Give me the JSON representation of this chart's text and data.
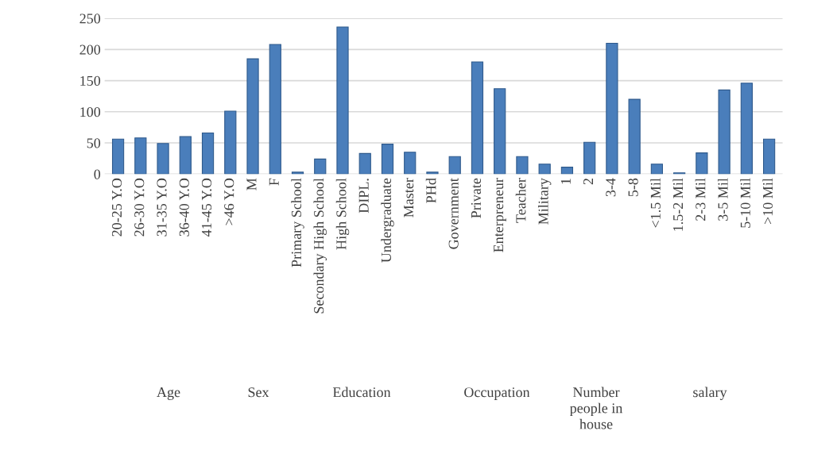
{
  "chart_data": {
    "type": "bar",
    "categories": [
      "20-25 Y.O",
      "26-30 Y.O",
      "31-35 Y.O",
      "36-40 Y.O",
      "41-45 Y.O",
      ">46 Y.O",
      "M",
      "F",
      "Primary School",
      "Secondary High School",
      "High School",
      "DIPL.",
      "Undergraduate",
      "Master",
      "PHd",
      "Government",
      "Private",
      "Enterpreneur",
      "Teacher",
      "Military",
      "1",
      "2",
      "3-4",
      "5-8",
      "<1.5 Mil",
      "1.5-2 Mil",
      "2-3 Mil",
      "3-5 Mil",
      "5-10 Mil",
      ">10 Mil"
    ],
    "values": [
      56,
      58,
      49,
      60,
      66,
      101,
      185,
      208,
      3,
      24,
      236,
      33,
      48,
      35,
      3,
      28,
      180,
      137,
      28,
      16,
      11,
      51,
      210,
      120,
      16,
      2,
      34,
      135,
      146,
      56
    ],
    "color": "#4a7ebb",
    "ylim": [
      0,
      250
    ],
    "yticks": [
      0,
      50,
      100,
      150,
      200,
      250
    ],
    "grid": "y",
    "annotations": [
      "Age",
      "Sex",
      "Education",
      "Occupation",
      "Number\npeople in\nhouse",
      "salary"
    ]
  }
}
